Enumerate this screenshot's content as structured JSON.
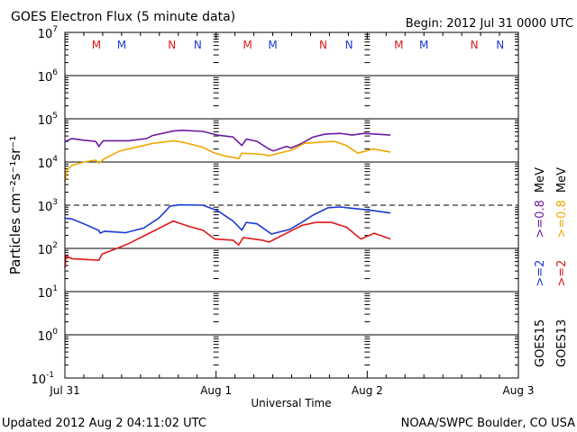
{
  "chart_data": {
    "type": "line",
    "title": "GOES Electron Flux (5 minute data)",
    "begin_label": "Begin: 2012 Jul 31 0000 UTC",
    "xlabel": "Universal Time",
    "ylabel": "Particles cm⁻²s⁻¹sr⁻¹",
    "y_scale": "log",
    "ylim_exp": [
      -1,
      7
    ],
    "y_ticks": [
      {
        "base": "10",
        "exp": "7"
      },
      {
        "base": "10",
        "exp": "6"
      },
      {
        "base": "10",
        "exp": "5"
      },
      {
        "base": "10",
        "exp": "4"
      },
      {
        "base": "10",
        "exp": "3"
      },
      {
        "base": "10",
        "exp": "2"
      },
      {
        "base": "10",
        "exp": "1"
      },
      {
        "base": "10",
        "exp": "0"
      },
      {
        "base": "10",
        "exp": "-1"
      }
    ],
    "x_unit": "hours since 2012 Jul 31 0000 UTC",
    "xlim": [
      0,
      72
    ],
    "x_ticks": [
      {
        "label": "Jul 31",
        "hour": 0
      },
      {
        "label": "Aug 1",
        "hour": 24
      },
      {
        "label": "Aug 2",
        "hour": 48
      },
      {
        "label": "Aug 3",
        "hour": 72
      }
    ],
    "threshold": 1000,
    "grid": true,
    "markers": [
      {
        "label": "M",
        "hour": 5.0,
        "color": "#e01818"
      },
      {
        "label": "M",
        "hour": 9.0,
        "color": "#1a3ad0"
      },
      {
        "label": "N",
        "hour": 17.0,
        "color": "#e01818"
      },
      {
        "label": "N",
        "hour": 21.1,
        "color": "#1a3ad0"
      },
      {
        "label": "M",
        "hour": 29.0,
        "color": "#e01818"
      },
      {
        "label": "M",
        "hour": 33.0,
        "color": "#1a3ad0"
      },
      {
        "label": "N",
        "hour": 41.0,
        "color": "#e01818"
      },
      {
        "label": "N",
        "hour": 45.1,
        "color": "#1a3ad0"
      },
      {
        "label": "M",
        "hour": 53.0,
        "color": "#e01818"
      },
      {
        "label": "M",
        "hour": 57.0,
        "color": "#1a3ad0"
      },
      {
        "label": "N",
        "hour": 65.0,
        "color": "#e01818"
      },
      {
        "label": "N",
        "hour": 69.1,
        "color": "#1a3ad0"
      }
    ],
    "series": [
      {
        "name": "GOES15 >=0.8 MeV",
        "color": "#6a1aa0",
        "x": [
          0,
          1.1,
          3,
          4.9,
          5.4,
          6.1,
          10.1,
          13,
          13.9,
          17.2,
          18.6,
          21.9,
          24.2,
          26.7,
          28.1,
          28.8,
          30.5,
          32.4,
          33.1,
          35.2,
          35.9,
          37.6,
          39.4,
          41.3,
          43.7,
          45.6,
          47.5,
          51.7
        ],
        "y": [
          29600,
          35000,
          32000,
          30000,
          23000,
          31000,
          31000,
          35000,
          41000,
          52000,
          54000,
          51000,
          42000,
          38000,
          24000,
          34000,
          30000,
          20000,
          18000,
          23000,
          21000,
          27000,
          38000,
          44000,
          46000,
          42000,
          46000,
          42000
        ]
      },
      {
        "name": "GOES13 >=0.8 MeV",
        "color": "#f0a800",
        "x": [
          0,
          0.3,
          1.1,
          3,
          4.9,
          5.4,
          6.3,
          8.7,
          12.5,
          13.9,
          17.2,
          18.6,
          21.9,
          23.8,
          25.3,
          27.6,
          28.1,
          31.4,
          32.4,
          36.1,
          38,
          40.9,
          42.8,
          44.7,
          46.5,
          48.9,
          51.7
        ],
        "y": [
          3400,
          6500,
          8300,
          10000,
          11000,
          9400,
          12000,
          18000,
          24000,
          27000,
          31000,
          29000,
          22000,
          16000,
          14000,
          12000,
          16000,
          15000,
          14000,
          19000,
          27000,
          29000,
          30000,
          24000,
          16000,
          20000,
          17000
        ]
      },
      {
        "name": "GOES15 >=2 MeV",
        "color": "#1a3ad0",
        "x": [
          0,
          1.1,
          3,
          5.4,
          5.6,
          6.3,
          9.6,
          12.5,
          14.9,
          16.7,
          18.2,
          21.9,
          24.2,
          26.7,
          28.1,
          28.8,
          30.5,
          32.8,
          35.7,
          37.6,
          39.4,
          41.8,
          43.7,
          48.1,
          51.7
        ],
        "y": [
          500,
          480,
          370,
          260,
          225,
          250,
          230,
          295,
          500,
          950,
          1020,
          1000,
          750,
          430,
          265,
          400,
          370,
          215,
          275,
          400,
          590,
          875,
          910,
          780,
          660
        ]
      },
      {
        "name": "GOES13 >=2 MeV",
        "color": "#e01818",
        "x": [
          0,
          0.2,
          1.1,
          5.4,
          5.9,
          7.8,
          10.1,
          13.4,
          17.2,
          19.6,
          21.9,
          23.8,
          26.7,
          27.6,
          28.3,
          31.4,
          32.4,
          35.7,
          37.6,
          39.9,
          42.3,
          44.7,
          47,
          49.1,
          51.7
        ],
        "y": [
          36,
          67,
          58,
          53,
          74,
          94,
          129,
          225,
          430,
          325,
          265,
          165,
          155,
          120,
          178,
          155,
          140,
          245,
          340,
          400,
          400,
          310,
          165,
          225,
          165
        ]
      }
    ],
    "legend": {
      "placement": "right",
      "columns": [
        {
          "sat": "GOES15",
          "sat_color": "#000000",
          "e2": ">=2",
          "e2_color": "#1a3ad0",
          "e08": ">=0.8",
          "e08_color": "#6a1aa0",
          "unit": "MeV"
        },
        {
          "sat": "GOES13",
          "sat_color": "#000000",
          "e2": ">=2",
          "e2_color": "#e01818",
          "e08": ">=0.8",
          "e08_color": "#f0a800",
          "unit": "MeV"
        }
      ]
    }
  },
  "footer": {
    "updated": "Updated 2012 Aug  2 04:11:02 UTC",
    "credit": "NOAA/SWPC Boulder, CO USA"
  }
}
